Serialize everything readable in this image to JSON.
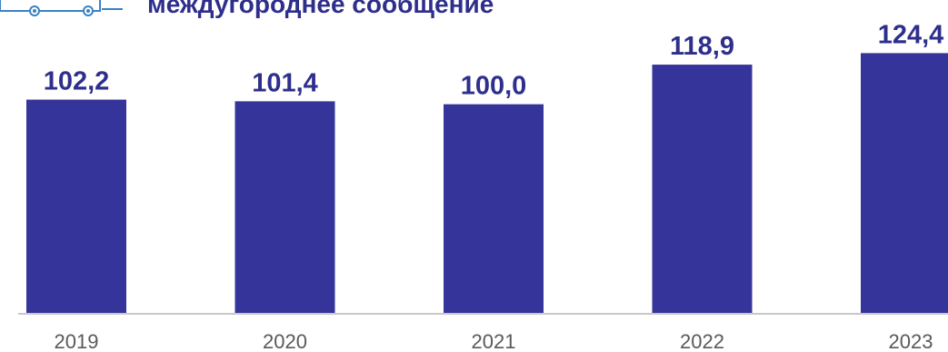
{
  "header": {
    "title": "междугороднее сообщение",
    "logo_icon": "bus-icon"
  },
  "colors": {
    "bar": "#35349a",
    "label": "#2e2f8c",
    "axis": "#c8c8c8",
    "tick": "#595959",
    "logo": "#3b82c4"
  },
  "chart_data": {
    "type": "bar",
    "categories": [
      "2019",
      "2020",
      "2021",
      "2022",
      "2023"
    ],
    "values": [
      102.2,
      101.4,
      100.0,
      118.9,
      124.4
    ],
    "value_labels": [
      "102,2",
      "101,4",
      "100,0",
      "118,9",
      "124,4"
    ],
    "title": "междугороднее сообщение",
    "xlabel": "",
    "ylabel": "",
    "grid": false,
    "legend": "none"
  }
}
